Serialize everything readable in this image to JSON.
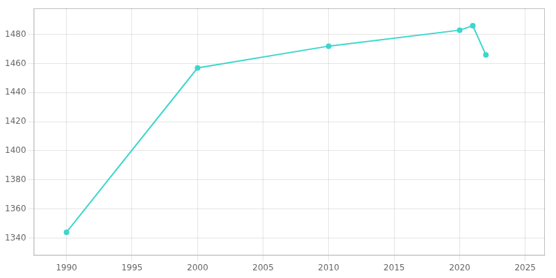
{
  "chart_data": {
    "type": "line",
    "x": [
      1990,
      2000,
      2010,
      2020,
      2021,
      2022
    ],
    "values": [
      1344,
      1457,
      1472,
      1483,
      1486,
      1466
    ],
    "color": "#3dd6cc",
    "marker": "circle",
    "xlim": [
      1987.5,
      2026.5
    ],
    "ylim": [
      1328,
      1498
    ],
    "xticks": [
      1990,
      1995,
      2000,
      2005,
      2010,
      2015,
      2020,
      2025
    ],
    "yticks": [
      1340,
      1360,
      1380,
      1400,
      1420,
      1440,
      1460,
      1480
    ],
    "grid": true
  }
}
